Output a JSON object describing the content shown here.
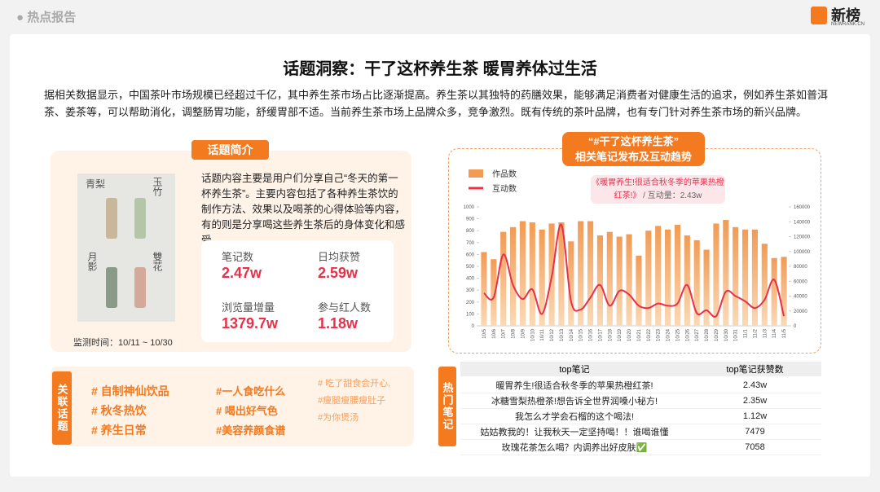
{
  "header": {
    "section": "热点报告",
    "brand": "新榜",
    "brand_en": "NEWRANK.CN"
  },
  "title": "话题洞察：干了这杯养生茶 暖胃养体过生活",
  "intro": "据相关数据显示，中国茶叶市场规模已经超过千亿，其中养生茶市场占比逐渐提高。养生茶以其独特的药膳效果，能够满足消费者对健康生活的追求，例如养生茶如普洱茶、姜茶等，可以帮助消化，调整肠胃功能，舒缓胃部不适。当前养生茶市场上品牌众多，竞争激烈。既有传统的茶叶品牌，也有专门针对养生茶市场的新兴品牌。",
  "topic_intro": {
    "label": "话题简介",
    "image_labels": [
      "青梨",
      "玉竹",
      "月影",
      "雙花"
    ],
    "description": "话题内容主要是用户们分享自己“冬天的第一杯养生茶”。主要内容包括了各种养生茶饮的制作方法、效果以及喝茶的心得体验等内容，有的则是分享喝这些养生茶后的身体变化和感受。",
    "monitor": "监测时间：10/11 ~ 10/30",
    "stats": [
      {
        "label": "笔记数",
        "value": "2.47w"
      },
      {
        "label": "日均获赞",
        "value": "2.59w"
      },
      {
        "label": "浏览量增量",
        "value": "1379.7w"
      },
      {
        "label": "参与红人数",
        "value": "1.18w"
      }
    ]
  },
  "related_topics": {
    "label": "关联话题",
    "columns": [
      [
        "# 自制神仙饮品",
        "# 秋冬热饮",
        "# 养生日常"
      ],
      [
        "#一人食吃什么",
        "# 喝出好气色",
        "#美容养颜食谱"
      ],
      [
        "# 吃了甜食会开心,",
        "#瘦腿瘦腰瘦肚子",
        "#为你煲汤"
      ]
    ]
  },
  "chart": {
    "type": "bar",
    "title": "“#干了这杯养生茶”",
    "subtitle": "相关笔记发布及互动趋势",
    "annotation": "《暖胃养生!很适合秋冬季的苹果热橙红茶!》",
    "annotation_value": "/ 互动量：2.43w",
    "categories": [
      "10/5",
      "10/6",
      "10/7",
      "10/8",
      "10/9",
      "10/10",
      "10/11",
      "10/12",
      "10/13",
      "10/14",
      "10/15",
      "10/16",
      "10/17",
      "10/18",
      "10/19",
      "10/20",
      "10/21",
      "10/22",
      "10/23",
      "10/24",
      "10/25",
      "10/26",
      "10/27",
      "10/28",
      "10/29",
      "10/30",
      "10/31",
      "11/1",
      "11/2",
      "11/3",
      "11/4",
      "11/5"
    ],
    "series": [
      {
        "name": "作品数",
        "color": "#f29b54",
        "values": [
          620,
          560,
          790,
          830,
          880,
          870,
          810,
          860,
          870,
          710,
          880,
          880,
          760,
          790,
          750,
          770,
          590,
          800,
          840,
          810,
          850,
          760,
          720,
          640,
          860,
          890,
          830,
          810,
          810,
          690,
          570,
          580
        ]
      },
      {
        "name": "互动数",
        "color": "#e8304a",
        "type": "line",
        "axis": "y2",
        "values": [
          44000,
          38000,
          96000,
          55000,
          36000,
          49000,
          16000,
          66000,
          136000,
          33000,
          22000,
          38000,
          55000,
          27000,
          47000,
          42000,
          27000,
          24000,
          30000,
          27000,
          30000,
          55000,
          17000,
          21000,
          13000,
          46000,
          40000,
          33000,
          24000,
          35000,
          62000,
          13000
        ]
      }
    ],
    "ylim": [
      0,
      1000
    ],
    "yticks": [
      0,
      100,
      200,
      300,
      400,
      500,
      600,
      700,
      800,
      900,
      1000
    ],
    "y2lim": [
      0,
      160000
    ],
    "y2ticks": [
      0,
      20000,
      40000,
      60000,
      80000,
      100000,
      120000,
      140000,
      160000
    ]
  },
  "hot_notes": {
    "label": "热门笔记",
    "headers": [
      "top笔记",
      "top笔记获赞数"
    ],
    "rows": [
      [
        "暖胃养生!很适合秋冬季的苹果热橙红茶!",
        "2.43w"
      ],
      [
        "冰糖雪梨热橙茶!想告诉全世界润嗓小秘方!",
        "2.35w"
      ],
      [
        "我怎么才学会石榴的这个喝法!",
        "1.12w"
      ],
      [
        "姑姑教我的！让我秋天一定坚持喝！！谁喝谁懂",
        "7479"
      ],
      [
        "玫瑰花茶怎么喝？内调养出好皮肤✅",
        "7058"
      ]
    ]
  }
}
